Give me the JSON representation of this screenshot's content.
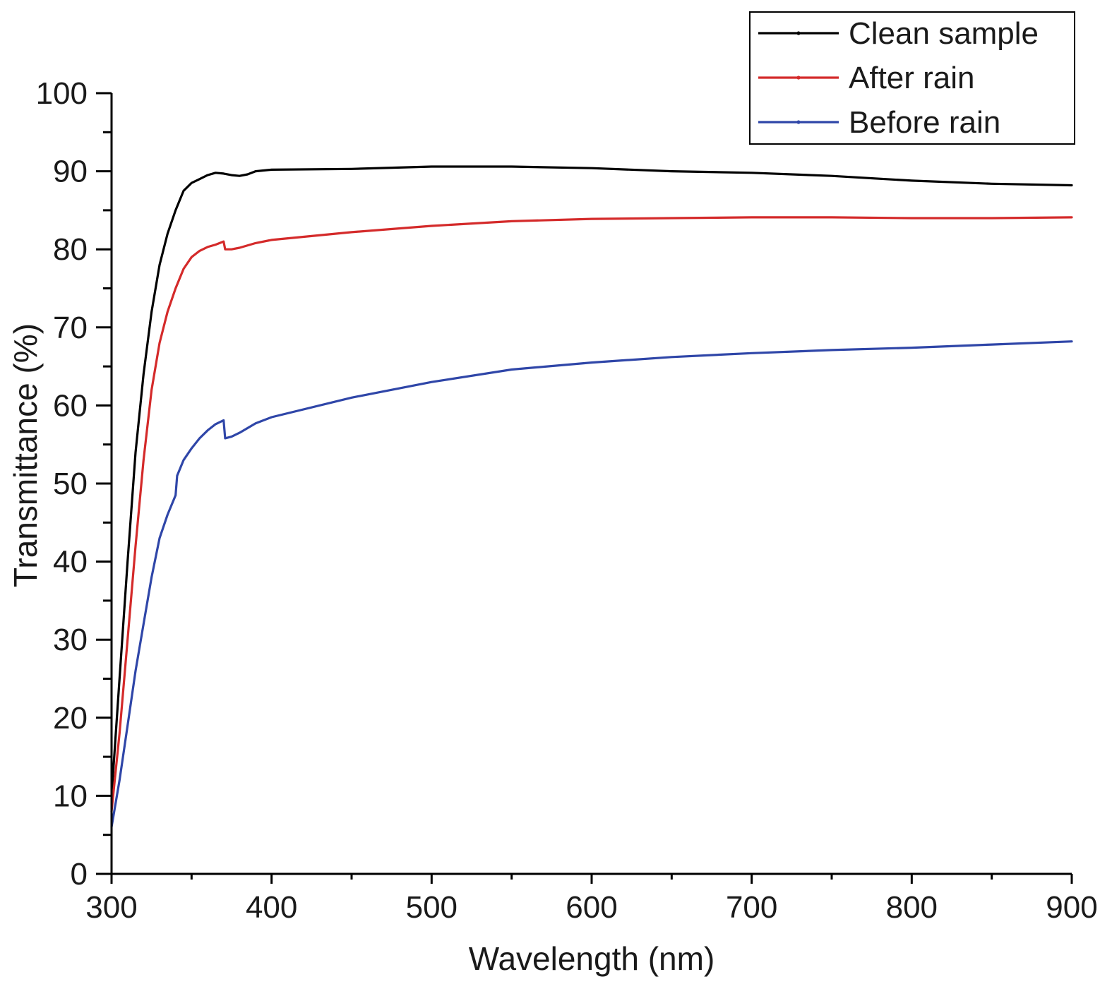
{
  "chart_data": {
    "type": "line",
    "title": "",
    "xlabel": "Wavelength (nm)",
    "ylabel": "Transmittance (%)",
    "xlim": [
      300,
      900
    ],
    "ylim": [
      0,
      100
    ],
    "x_ticks": [
      300,
      400,
      500,
      600,
      700,
      800,
      900
    ],
    "y_ticks": [
      0,
      10,
      20,
      30,
      40,
      50,
      60,
      70,
      80,
      90,
      100
    ],
    "x_minor_step": 50,
    "y_minor_step": 5,
    "grid": false,
    "legend_position": "top-right",
    "series": [
      {
        "name": "Clean sample",
        "color": "#000000",
        "points": [
          [
            300,
            10
          ],
          [
            305,
            25
          ],
          [
            310,
            40
          ],
          [
            315,
            54
          ],
          [
            320,
            64
          ],
          [
            325,
            72
          ],
          [
            330,
            78
          ],
          [
            335,
            82
          ],
          [
            340,
            85
          ],
          [
            345,
            87.5
          ],
          [
            350,
            88.5
          ],
          [
            355,
            89
          ],
          [
            360,
            89.5
          ],
          [
            365,
            89.8
          ],
          [
            370,
            89.7
          ],
          [
            375,
            89.5
          ],
          [
            380,
            89.4
          ],
          [
            385,
            89.6
          ],
          [
            390,
            90
          ],
          [
            400,
            90.2
          ],
          [
            450,
            90.3
          ],
          [
            500,
            90.6
          ],
          [
            550,
            90.6
          ],
          [
            600,
            90.4
          ],
          [
            650,
            90
          ],
          [
            700,
            89.8
          ],
          [
            750,
            89.4
          ],
          [
            800,
            88.8
          ],
          [
            850,
            88.4
          ],
          [
            900,
            88.2
          ]
        ]
      },
      {
        "name": "After rain",
        "color": "#d42a2a",
        "points": [
          [
            300,
            8
          ],
          [
            305,
            18
          ],
          [
            310,
            30
          ],
          [
            315,
            42
          ],
          [
            320,
            53
          ],
          [
            325,
            62
          ],
          [
            330,
            68
          ],
          [
            335,
            72
          ],
          [
            340,
            75
          ],
          [
            345,
            77.5
          ],
          [
            350,
            79
          ],
          [
            355,
            79.8
          ],
          [
            360,
            80.3
          ],
          [
            365,
            80.6
          ],
          [
            370,
            81
          ],
          [
            371,
            80
          ],
          [
            375,
            80
          ],
          [
            380,
            80.2
          ],
          [
            390,
            80.8
          ],
          [
            400,
            81.2
          ],
          [
            450,
            82.2
          ],
          [
            500,
            83
          ],
          [
            550,
            83.6
          ],
          [
            600,
            83.9
          ],
          [
            650,
            84
          ],
          [
            700,
            84.1
          ],
          [
            750,
            84.1
          ],
          [
            800,
            84
          ],
          [
            850,
            84
          ],
          [
            900,
            84.1
          ]
        ]
      },
      {
        "name": "Before rain",
        "color": "#2f46a8",
        "points": [
          [
            300,
            6
          ],
          [
            305,
            12
          ],
          [
            310,
            19
          ],
          [
            315,
            26
          ],
          [
            320,
            32
          ],
          [
            325,
            38
          ],
          [
            330,
            43
          ],
          [
            335,
            46
          ],
          [
            340,
            48.5
          ],
          [
            341,
            51
          ],
          [
            345,
            53
          ],
          [
            350,
            54.5
          ],
          [
            355,
            55.8
          ],
          [
            360,
            56.8
          ],
          [
            365,
            57.6
          ],
          [
            370,
            58.1
          ],
          [
            371,
            55.8
          ],
          [
            375,
            56
          ],
          [
            380,
            56.5
          ],
          [
            390,
            57.7
          ],
          [
            400,
            58.5
          ],
          [
            450,
            61
          ],
          [
            500,
            63
          ],
          [
            550,
            64.6
          ],
          [
            600,
            65.5
          ],
          [
            650,
            66.2
          ],
          [
            700,
            66.7
          ],
          [
            750,
            67.1
          ],
          [
            800,
            67.4
          ],
          [
            850,
            67.8
          ],
          [
            900,
            68.2
          ]
        ]
      }
    ]
  }
}
